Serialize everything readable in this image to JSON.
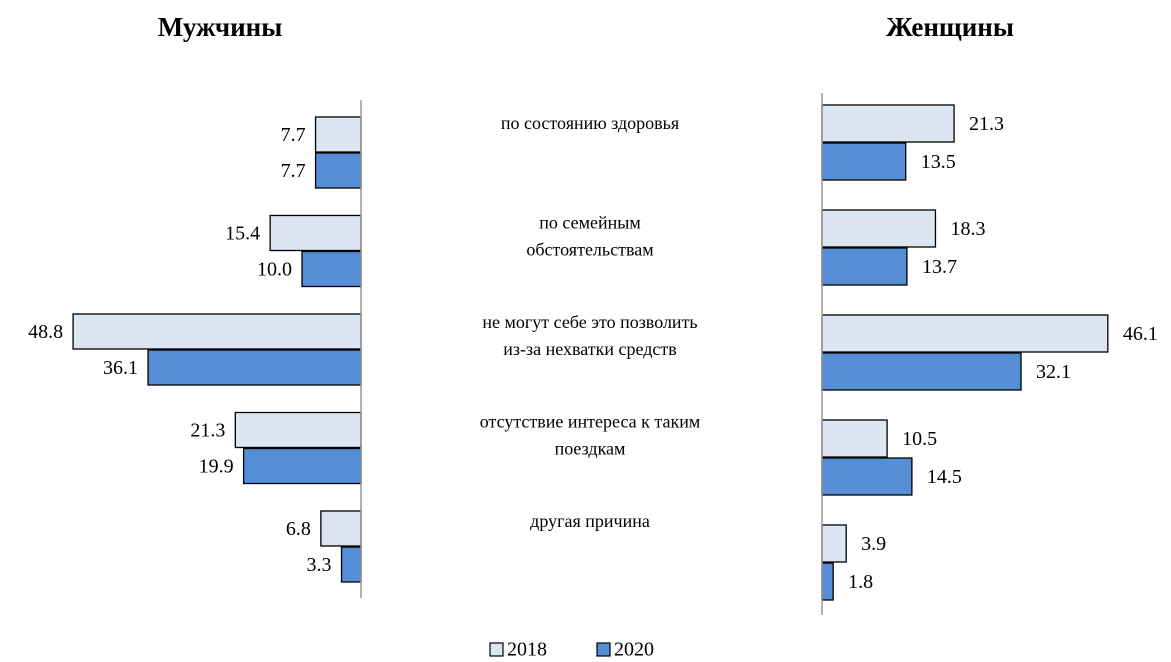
{
  "chart_data": {
    "type": "bar",
    "orientation": "horizontal",
    "categories": [
      "по состоянию здоровья",
      "по семейным\nобстоятельствам",
      "не могут себе это позволить\nиз-за нехватки средств",
      "отсутствие интереса к таким\nпоездкам",
      "другая причина"
    ],
    "series": [
      {
        "name": "2018",
        "color": "#dce6f2"
      },
      {
        "name": "2020",
        "color": "#558ed5"
      }
    ],
    "panels": [
      {
        "title": "Мужчины",
        "direction": "left",
        "xlim": [
          0,
          50
        ],
        "series": [
          {
            "values": [
              7.7,
              15.4,
              48.8,
              21.3,
              6.8
            ]
          },
          {
            "values": [
              7.7,
              10,
              36.1,
              19.9,
              3.3
            ],
            "value_labels": [
              "7.7",
              "10.0",
              "36.1",
              "19.9",
              "3.3"
            ]
          }
        ]
      },
      {
        "title": "Женщины",
        "direction": "right",
        "xlim": [
          0,
          50
        ],
        "series": [
          {
            "values": [
              21.3,
              18.3,
              46.1,
              10.5,
              3.9
            ]
          },
          {
            "values": [
              13.5,
              13.7,
              32.1,
              14.5,
              1.8
            ]
          }
        ]
      }
    ]
  }
}
